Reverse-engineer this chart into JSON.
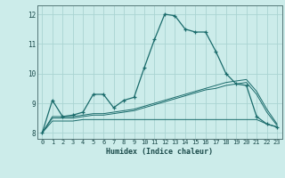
{
  "xlabel": "Humidex (Indice chaleur)",
  "bg_color": "#ccecea",
  "grid_color": "#aad4d2",
  "line_color": "#1a6b6b",
  "xlim": [
    -0.5,
    23.5
  ],
  "ylim": [
    7.8,
    12.3
  ],
  "xticks": [
    0,
    1,
    2,
    3,
    4,
    5,
    6,
    7,
    8,
    9,
    10,
    11,
    12,
    13,
    14,
    15,
    16,
    17,
    18,
    19,
    20,
    21,
    22,
    23
  ],
  "yticks": [
    8,
    9,
    10,
    11,
    12
  ],
  "series_main": {
    "x": [
      0,
      1,
      2,
      3,
      4,
      5,
      6,
      7,
      8,
      9,
      10,
      11,
      12,
      13,
      14,
      15,
      16,
      17,
      18,
      19,
      20,
      21,
      22,
      23
    ],
    "y": [
      8.0,
      9.1,
      8.55,
      8.6,
      8.7,
      9.3,
      9.3,
      8.85,
      9.1,
      9.2,
      10.2,
      11.15,
      12.0,
      11.95,
      11.5,
      11.4,
      11.4,
      10.75,
      10.0,
      9.65,
      9.6,
      8.55,
      8.3,
      8.2
    ]
  },
  "series_extra": [
    {
      "x": [
        0,
        1,
        2,
        3,
        4,
        5,
        6,
        7,
        8,
        9,
        10,
        11,
        12,
        13,
        14,
        15,
        16,
        17,
        18,
        19,
        20,
        21,
        22,
        23
      ],
      "y": [
        8.0,
        8.55,
        8.55,
        8.55,
        8.6,
        8.65,
        8.65,
        8.7,
        8.75,
        8.8,
        8.9,
        9.0,
        9.1,
        9.2,
        9.3,
        9.4,
        9.5,
        9.6,
        9.7,
        9.75,
        9.8,
        9.4,
        8.8,
        8.3
      ]
    },
    {
      "x": [
        0,
        1,
        2,
        3,
        4,
        5,
        6,
        7,
        8,
        9,
        10,
        11,
        12,
        13,
        14,
        15,
        16,
        17,
        18,
        19,
        20,
        21,
        22,
        23
      ],
      "y": [
        8.0,
        8.5,
        8.5,
        8.5,
        8.55,
        8.6,
        8.6,
        8.65,
        8.7,
        8.75,
        8.85,
        8.95,
        9.05,
        9.15,
        9.25,
        9.35,
        9.45,
        9.5,
        9.6,
        9.65,
        9.7,
        9.3,
        8.7,
        8.25
      ]
    },
    {
      "x": [
        0,
        1,
        2,
        3,
        4,
        5,
        6,
        7,
        8,
        9,
        10,
        11,
        12,
        13,
        14,
        15,
        16,
        17,
        18,
        19,
        20,
        21,
        22,
        23
      ],
      "y": [
        8.0,
        8.4,
        8.4,
        8.4,
        8.45,
        8.45,
        8.45,
        8.45,
        8.45,
        8.45,
        8.45,
        8.45,
        8.45,
        8.45,
        8.45,
        8.45,
        8.45,
        8.45,
        8.45,
        8.45,
        8.45,
        8.45,
        8.3,
        8.2
      ]
    }
  ]
}
